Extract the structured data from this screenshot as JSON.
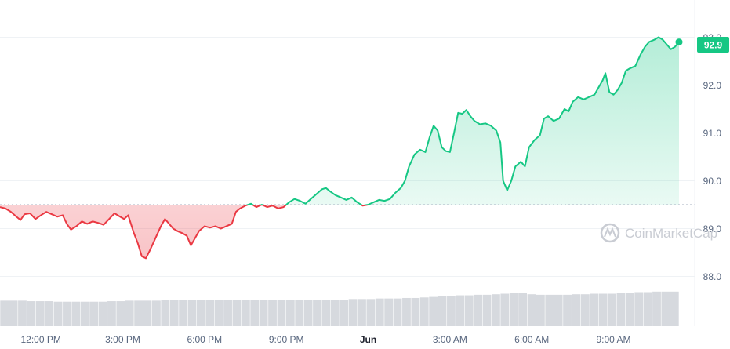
{
  "chart_data": {
    "type": "line",
    "title": "",
    "xlabel": "",
    "ylabel": "",
    "ylim": [
      88.0,
      93.0
    ],
    "x_range_hours": [
      -1.5,
      23.4
    ],
    "baseline": 89.5,
    "grid": true,
    "legend": "none",
    "watermark": "CoinMarketCap",
    "current_value": 92.9,
    "current_value_label": "92.9",
    "colors": {
      "up": "#16c784",
      "down": "#ea3943",
      "volume": "#d6d9de",
      "grid": "#eff2f5",
      "badge": "#16c784"
    },
    "y_ticks": [
      {
        "value": 88.0,
        "label": "88.0"
      },
      {
        "value": 89.0,
        "label": "89.0"
      },
      {
        "value": 90.0,
        "label": "90.0"
      },
      {
        "value": 91.0,
        "label": "91.0"
      },
      {
        "value": 92.0,
        "label": "92.0"
      },
      {
        "value": 93.0,
        "label": "93.0"
      }
    ],
    "x_ticks": [
      {
        "hour": 0,
        "label": "12:00 PM",
        "bold": false
      },
      {
        "hour": 3,
        "label": "3:00 PM",
        "bold": false
      },
      {
        "hour": 6,
        "label": "6:00 PM",
        "bold": false
      },
      {
        "hour": 9,
        "label": "9:00 PM",
        "bold": false
      },
      {
        "hour": 12,
        "label": "Jun",
        "bold": true
      },
      {
        "hour": 15,
        "label": "3:00 AM",
        "bold": false
      },
      {
        "hour": 18,
        "label": "6:00 AM",
        "bold": false
      },
      {
        "hour": 21,
        "label": "9:00 AM",
        "bold": false
      }
    ],
    "series": [
      {
        "points": [
          [
            -1.5,
            89.45
          ],
          [
            -1.3,
            89.42
          ],
          [
            -1.1,
            89.35
          ],
          [
            -0.9,
            89.25
          ],
          [
            -0.75,
            89.18
          ],
          [
            -0.6,
            89.3
          ],
          [
            -0.4,
            89.32
          ],
          [
            -0.2,
            89.2
          ],
          [
            0.0,
            89.28
          ],
          [
            0.2,
            89.35
          ],
          [
            0.4,
            89.3
          ],
          [
            0.6,
            89.25
          ],
          [
            0.8,
            89.28
          ],
          [
            0.95,
            89.1
          ],
          [
            1.1,
            88.98
          ],
          [
            1.3,
            89.05
          ],
          [
            1.5,
            89.15
          ],
          [
            1.7,
            89.1
          ],
          [
            1.9,
            89.15
          ],
          [
            2.1,
            89.12
          ],
          [
            2.3,
            89.08
          ],
          [
            2.5,
            89.2
          ],
          [
            2.7,
            89.32
          ],
          [
            2.9,
            89.25
          ],
          [
            3.05,
            89.2
          ],
          [
            3.2,
            89.28
          ],
          [
            3.3,
            89.1
          ],
          [
            3.4,
            88.92
          ],
          [
            3.55,
            88.7
          ],
          [
            3.7,
            88.42
          ],
          [
            3.85,
            88.38
          ],
          [
            4.0,
            88.55
          ],
          [
            4.2,
            88.8
          ],
          [
            4.4,
            89.05
          ],
          [
            4.55,
            89.2
          ],
          [
            4.7,
            89.1
          ],
          [
            4.85,
            89.0
          ],
          [
            5.0,
            88.95
          ],
          [
            5.2,
            88.9
          ],
          [
            5.35,
            88.85
          ],
          [
            5.5,
            88.65
          ],
          [
            5.65,
            88.8
          ],
          [
            5.8,
            88.95
          ],
          [
            6.0,
            89.05
          ],
          [
            6.2,
            89.02
          ],
          [
            6.4,
            89.05
          ],
          [
            6.6,
            89.0
          ],
          [
            6.8,
            89.05
          ],
          [
            7.0,
            89.1
          ],
          [
            7.15,
            89.35
          ],
          [
            7.3,
            89.42
          ],
          [
            7.5,
            89.48
          ],
          [
            7.7,
            89.52
          ],
          [
            7.9,
            89.45
          ],
          [
            8.1,
            89.5
          ],
          [
            8.3,
            89.45
          ],
          [
            8.5,
            89.48
          ],
          [
            8.7,
            89.42
          ],
          [
            8.9,
            89.45
          ],
          [
            9.1,
            89.55
          ],
          [
            9.3,
            89.62
          ],
          [
            9.5,
            89.58
          ],
          [
            9.7,
            89.52
          ],
          [
            9.9,
            89.62
          ],
          [
            10.1,
            89.72
          ],
          [
            10.3,
            89.82
          ],
          [
            10.45,
            89.85
          ],
          [
            10.6,
            89.78
          ],
          [
            10.8,
            89.7
          ],
          [
            11.0,
            89.65
          ],
          [
            11.2,
            89.6
          ],
          [
            11.4,
            89.65
          ],
          [
            11.6,
            89.55
          ],
          [
            11.8,
            89.48
          ],
          [
            12.0,
            89.5
          ],
          [
            12.2,
            89.55
          ],
          [
            12.4,
            89.6
          ],
          [
            12.6,
            89.58
          ],
          [
            12.8,
            89.62
          ],
          [
            13.0,
            89.75
          ],
          [
            13.2,
            89.85
          ],
          [
            13.35,
            90.0
          ],
          [
            13.5,
            90.3
          ],
          [
            13.7,
            90.55
          ],
          [
            13.9,
            90.65
          ],
          [
            14.1,
            90.6
          ],
          [
            14.25,
            90.9
          ],
          [
            14.4,
            91.15
          ],
          [
            14.55,
            91.05
          ],
          [
            14.7,
            90.7
          ],
          [
            14.85,
            90.62
          ],
          [
            15.0,
            90.6
          ],
          [
            15.15,
            91.0
          ],
          [
            15.3,
            91.42
          ],
          [
            15.45,
            91.4
          ],
          [
            15.6,
            91.48
          ],
          [
            15.75,
            91.35
          ],
          [
            15.9,
            91.25
          ],
          [
            16.1,
            91.18
          ],
          [
            16.3,
            91.2
          ],
          [
            16.5,
            91.15
          ],
          [
            16.7,
            91.05
          ],
          [
            16.85,
            90.8
          ],
          [
            16.95,
            90.0
          ],
          [
            17.1,
            89.8
          ],
          [
            17.25,
            90.0
          ],
          [
            17.4,
            90.3
          ],
          [
            17.6,
            90.4
          ],
          [
            17.75,
            90.3
          ],
          [
            17.9,
            90.7
          ],
          [
            18.1,
            90.85
          ],
          [
            18.3,
            90.95
          ],
          [
            18.45,
            91.3
          ],
          [
            18.6,
            91.35
          ],
          [
            18.8,
            91.25
          ],
          [
            19.0,
            91.3
          ],
          [
            19.2,
            91.5
          ],
          [
            19.35,
            91.45
          ],
          [
            19.5,
            91.65
          ],
          [
            19.7,
            91.75
          ],
          [
            19.9,
            91.7
          ],
          [
            20.1,
            91.75
          ],
          [
            20.3,
            91.8
          ],
          [
            20.45,
            91.95
          ],
          [
            20.6,
            92.1
          ],
          [
            20.7,
            92.25
          ],
          [
            20.85,
            91.85
          ],
          [
            21.0,
            91.8
          ],
          [
            21.15,
            91.9
          ],
          [
            21.3,
            92.05
          ],
          [
            21.45,
            92.3
          ],
          [
            21.6,
            92.35
          ],
          [
            21.8,
            92.4
          ],
          [
            22.0,
            92.65
          ],
          [
            22.15,
            92.8
          ],
          [
            22.3,
            92.9
          ],
          [
            22.5,
            92.95
          ],
          [
            22.65,
            93.0
          ],
          [
            22.8,
            92.95
          ],
          [
            22.95,
            92.85
          ],
          [
            23.1,
            92.75
          ],
          [
            23.25,
            92.8
          ],
          [
            23.4,
            92.9
          ]
        ]
      }
    ],
    "volume": {
      "ylim": [
        0,
        100
      ],
      "values": [
        48,
        48,
        48,
        47,
        47,
        47,
        46,
        46,
        46,
        46,
        46,
        46,
        47,
        47,
        48,
        48,
        48,
        48,
        49,
        49,
        49,
        49,
        49,
        49,
        49,
        49,
        49,
        49,
        49,
        49,
        49,
        49,
        50,
        50,
        50,
        50,
        50,
        50,
        50,
        51,
        51,
        51,
        52,
        52,
        52,
        53,
        53,
        54,
        55,
        56,
        57,
        58,
        58,
        59,
        59,
        60,
        61,
        63,
        62,
        60,
        59,
        59,
        59,
        59,
        60,
        60,
        61,
        61,
        61,
        62,
        63,
        64,
        64,
        65,
        65,
        65
      ]
    }
  }
}
